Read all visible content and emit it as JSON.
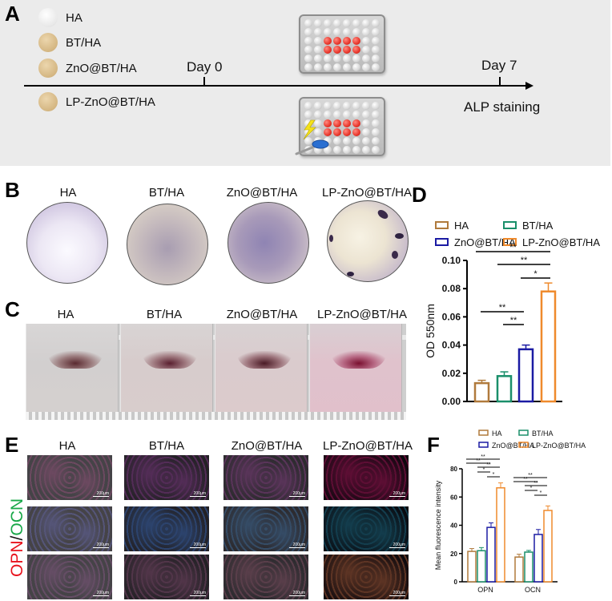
{
  "panels": {
    "A": {
      "letter": "A",
      "materials": [
        {
          "label": "HA",
          "color": "#f3f3f3"
        },
        {
          "label": "BT/HA",
          "color": "#dcc193"
        },
        {
          "label": "ZnO@BT/HA",
          "color": "#dcc193"
        },
        {
          "label": "LP-ZnO@BT/HA",
          "color": "#dcc193"
        }
      ],
      "timeline": {
        "day0": "Day 0",
        "day7": "Day 7",
        "endpoint": "ALP staining"
      },
      "plates": [
        {
          "name": "control-plate",
          "rows": 6,
          "cols": 8,
          "red_rows": [
            2,
            3
          ],
          "red_cols": [
            2,
            3,
            4,
            5
          ]
        },
        {
          "name": "laser-plate",
          "rows": 6,
          "cols": 8,
          "red_rows": [
            2,
            3
          ],
          "red_cols": [
            2,
            3,
            4,
            5
          ],
          "icon": "lightning-ultrasound-icon"
        }
      ]
    },
    "B": {
      "letter": "B",
      "groups": [
        "HA",
        "BT/HA",
        "ZnO@BT/HA",
        "LP-ZnO@BT/HA"
      ]
    },
    "C": {
      "letter": "C",
      "groups": [
        "HA",
        "BT/HA",
        "ZnO@BT/HA",
        "LP-ZnO@BT/HA"
      ]
    },
    "D": {
      "letter": "D"
    },
    "E": {
      "letter": "E",
      "groups": [
        "HA",
        "BT/HA",
        "ZnO@BT/HA",
        "LP-ZnO@BT/HA"
      ],
      "side_label_opn": "OPN",
      "side_label_slash": "/",
      "side_label_ocn": "OCN",
      "scale_bar": "200μm"
    },
    "F": {
      "letter": "F"
    }
  },
  "colors": {
    "HA": "#b07a3c",
    "BT/HA": "#1a8f6a",
    "ZnO@BT/HA": "#1b1ba3",
    "LP-ZnO@BT/HA": "#ef8a2c",
    "opn_red": "#e8121c",
    "ocn_green": "#19a849"
  },
  "chart_data": [
    {
      "panel": "D",
      "type": "bar",
      "title": "",
      "xlabel": "",
      "ylabel": "OD 550nm",
      "ylim": [
        0,
        0.1
      ],
      "yticks": [
        "0.00",
        "0.02",
        "0.04",
        "0.06",
        "0.08",
        "0.10"
      ],
      "categories": [
        "HA",
        "BT/HA",
        "ZnO@BT/HA",
        "LP-ZnO@BT/HA"
      ],
      "values": [
        0.013,
        0.018,
        0.037,
        0.078
      ],
      "errors": [
        0.002,
        0.003,
        0.003,
        0.006
      ],
      "legend": [
        "HA",
        "BT/HA",
        "ZnO@BT/HA",
        "LP-ZnO@BT/HA"
      ],
      "legend_position": "top",
      "significance": [
        {
          "from": "HA",
          "to": "LP-ZnO@BT/HA",
          "label": "**"
        },
        {
          "from": "BT/HA",
          "to": "LP-ZnO@BT/HA",
          "label": "**"
        },
        {
          "from": "ZnO@BT/HA",
          "to": "LP-ZnO@BT/HA",
          "label": "*"
        },
        {
          "from": "HA",
          "to": "ZnO@BT/HA",
          "label": "**"
        },
        {
          "from": "BT/HA",
          "to": "ZnO@BT/HA",
          "label": "**"
        }
      ]
    },
    {
      "panel": "F",
      "type": "bar",
      "title": "",
      "xlabel": "",
      "ylabel": "Mean fluorescence intensity",
      "ylim": [
        0,
        80
      ],
      "yticks": [
        "0",
        "20",
        "40",
        "60",
        "80"
      ],
      "categories": [
        "OPN",
        "OCN"
      ],
      "series": [
        {
          "name": "HA",
          "values": [
            21.5,
            17.5
          ],
          "errors": [
            2.0,
            2.0
          ]
        },
        {
          "name": "BT/HA",
          "values": [
            22.0,
            21.0
          ],
          "errors": [
            2.2,
            1.2
          ]
        },
        {
          "name": "ZnO@BT/HA",
          "values": [
            38.5,
            33.5
          ],
          "errors": [
            3.2,
            3.5
          ]
        },
        {
          "name": "LP-ZnO@BT/HA",
          "values": [
            66.5,
            50.5
          ],
          "errors": [
            3.5,
            3.2
          ]
        }
      ],
      "legend": [
        "HA",
        "BT/HA",
        "ZnO@BT/HA",
        "LP-ZnO@BT/HA"
      ],
      "legend_position": "top",
      "significance": {
        "OPN": [
          "**",
          "**",
          "**",
          "*",
          "*"
        ],
        "OCN": [
          "**",
          "**",
          "**",
          "*",
          "*"
        ]
      }
    }
  ]
}
